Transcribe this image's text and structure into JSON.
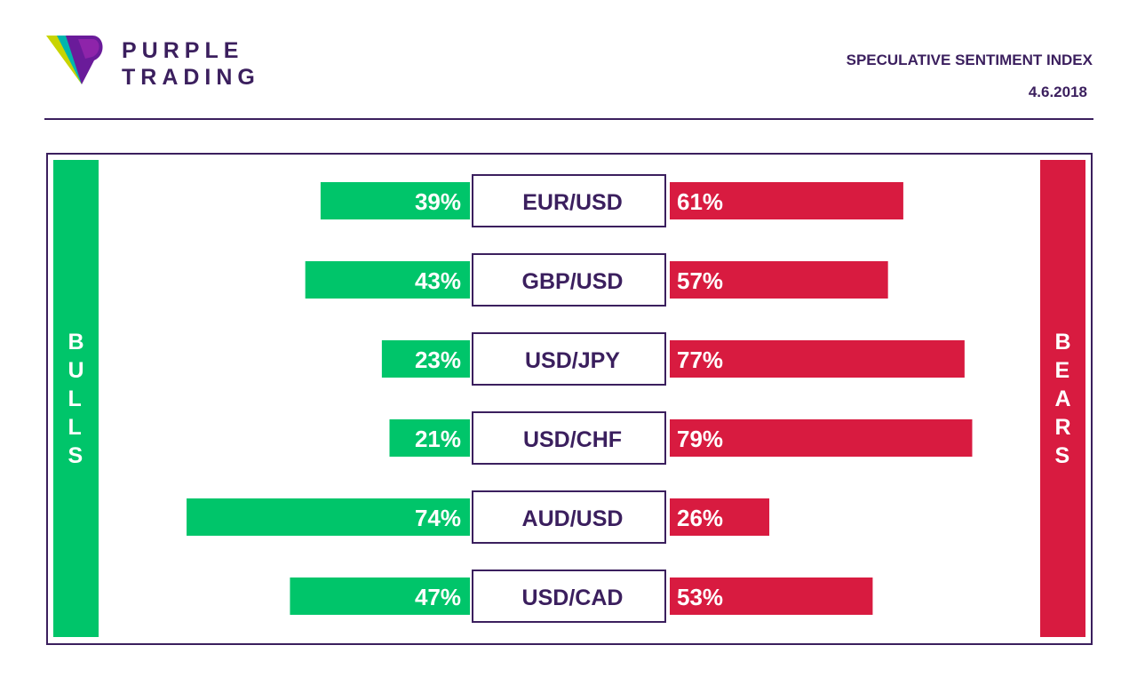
{
  "brand": {
    "line1": "PURPLE",
    "line2": "TRADING",
    "mark_colors": [
      "#c8d400",
      "#00b5ad",
      "#6a1b9a",
      "#3b1f5e"
    ]
  },
  "header": {
    "title": "SPECULATIVE SENTIMENT INDEX",
    "date": "4.6.2018"
  },
  "sides": {
    "left": "BULLS",
    "right": "BEARS"
  },
  "colors": {
    "bull": "#00c56a",
    "bear": "#d81b40",
    "accent": "#3b1f5e"
  },
  "chart_data": {
    "type": "bar",
    "categories": [
      "EUR/USD",
      "GBP/USD",
      "USD/JPY",
      "USD/CHF",
      "AUD/USD",
      "USD/CAD"
    ],
    "series": [
      {
        "name": "BULLS",
        "values": [
          39,
          43,
          23,
          21,
          74,
          47
        ],
        "labels": [
          "39%",
          "43%",
          "23%",
          "21%",
          "74%",
          "47%"
        ]
      },
      {
        "name": "BEARS",
        "values": [
          61,
          57,
          77,
          79,
          26,
          53
        ],
        "labels": [
          "61%",
          "57%",
          "77%",
          "79%",
          "26%",
          "53%"
        ]
      }
    ],
    "unit": "%"
  }
}
